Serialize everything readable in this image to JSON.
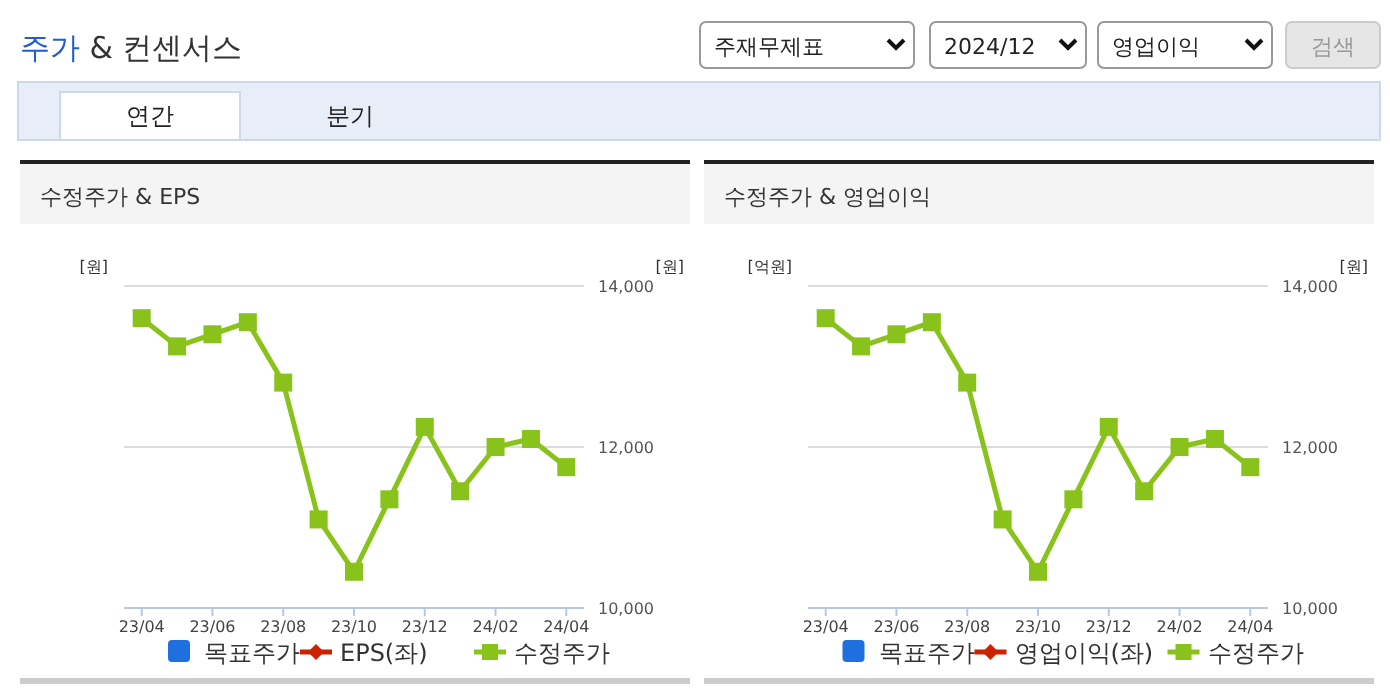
{
  "chart_data": [
    {
      "type": "other",
      "title": "주가 & 컨센서스",
      "annotations": [
        "주재무제표",
        "2024/12",
        "영업이익",
        "검색",
        "연간",
        "분기"
      ]
    },
    {
      "type": "line",
      "title": "수정주가 & EPS",
      "ylabel": "[원]",
      "y2label": "[원]",
      "categories": [
        "23/04",
        null,
        "23/06",
        null,
        "23/08",
        null,
        "23/10",
        null,
        "23/12",
        null,
        "24/02",
        null,
        "24/04"
      ],
      "y2lim": [
        10000,
        14000
      ],
      "y2ticks": [
        {
          "value": 10000,
          "label": "10,000"
        },
        {
          "value": 12000,
          "label": "12,000"
        },
        {
          "value": 14000,
          "label": "14,000"
        }
      ],
      "grid": "y",
      "legend": "bottom",
      "tick_labels": "x",
      "series": [
        {
          "name": "목표주가",
          "type": "bar",
          "color": "#1f6fe0",
          "axis": "y2",
          "values": [
            null,
            null,
            null,
            null,
            null,
            null,
            null,
            null,
            null,
            null,
            null,
            null,
            null
          ]
        },
        {
          "name": "EPS(좌)",
          "type": "line",
          "marker": "diamond",
          "color": "#cc2200",
          "axis": "y2",
          "values": [
            null,
            null,
            null,
            null,
            null,
            null,
            null,
            null,
            null,
            null,
            null,
            null,
            null
          ]
        },
        {
          "name": "수정주가",
          "type": "line",
          "marker": "square",
          "color": "#88c21a",
          "axis": "y2",
          "values": [
            13600,
            13250,
            13400,
            13550,
            12800,
            11100,
            10450,
            11350,
            12250,
            11450,
            12000,
            12100,
            11750
          ]
        }
      ]
    },
    {
      "type": "line",
      "title": "수정주가 & 영업이익",
      "ylabel": "[억원]",
      "y2label": "[원]",
      "categories": [
        "23/04",
        null,
        "23/06",
        null,
        "23/08",
        null,
        "23/10",
        null,
        "23/12",
        null,
        "24/02",
        null,
        "24/04"
      ],
      "y2lim": [
        10000,
        14000
      ],
      "y2ticks": [
        {
          "value": 10000,
          "label": "10,000"
        },
        {
          "value": 12000,
          "label": "12,000"
        },
        {
          "value": 14000,
          "label": "14,000"
        }
      ],
      "grid": "y",
      "legend": "bottom",
      "tick_labels": "x",
      "series": [
        {
          "name": "목표주가",
          "type": "bar",
          "color": "#1f6fe0",
          "axis": "y2",
          "values": [
            null,
            null,
            null,
            null,
            null,
            null,
            null,
            null,
            null,
            null,
            null,
            null,
            null
          ]
        },
        {
          "name": "영업이익(좌)",
          "type": "line",
          "marker": "diamond",
          "color": "#cc2200",
          "axis": "y2",
          "values": [
            null,
            null,
            null,
            null,
            null,
            null,
            null,
            null,
            null,
            null,
            null,
            null,
            null
          ]
        },
        {
          "name": "수정주가",
          "type": "line",
          "marker": "square",
          "color": "#88c21a",
          "axis": "y2",
          "values": [
            13600,
            13250,
            13400,
            13550,
            12800,
            11100,
            10450,
            11350,
            12250,
            11450,
            12000,
            12100,
            11750
          ]
        }
      ]
    }
  ]
}
